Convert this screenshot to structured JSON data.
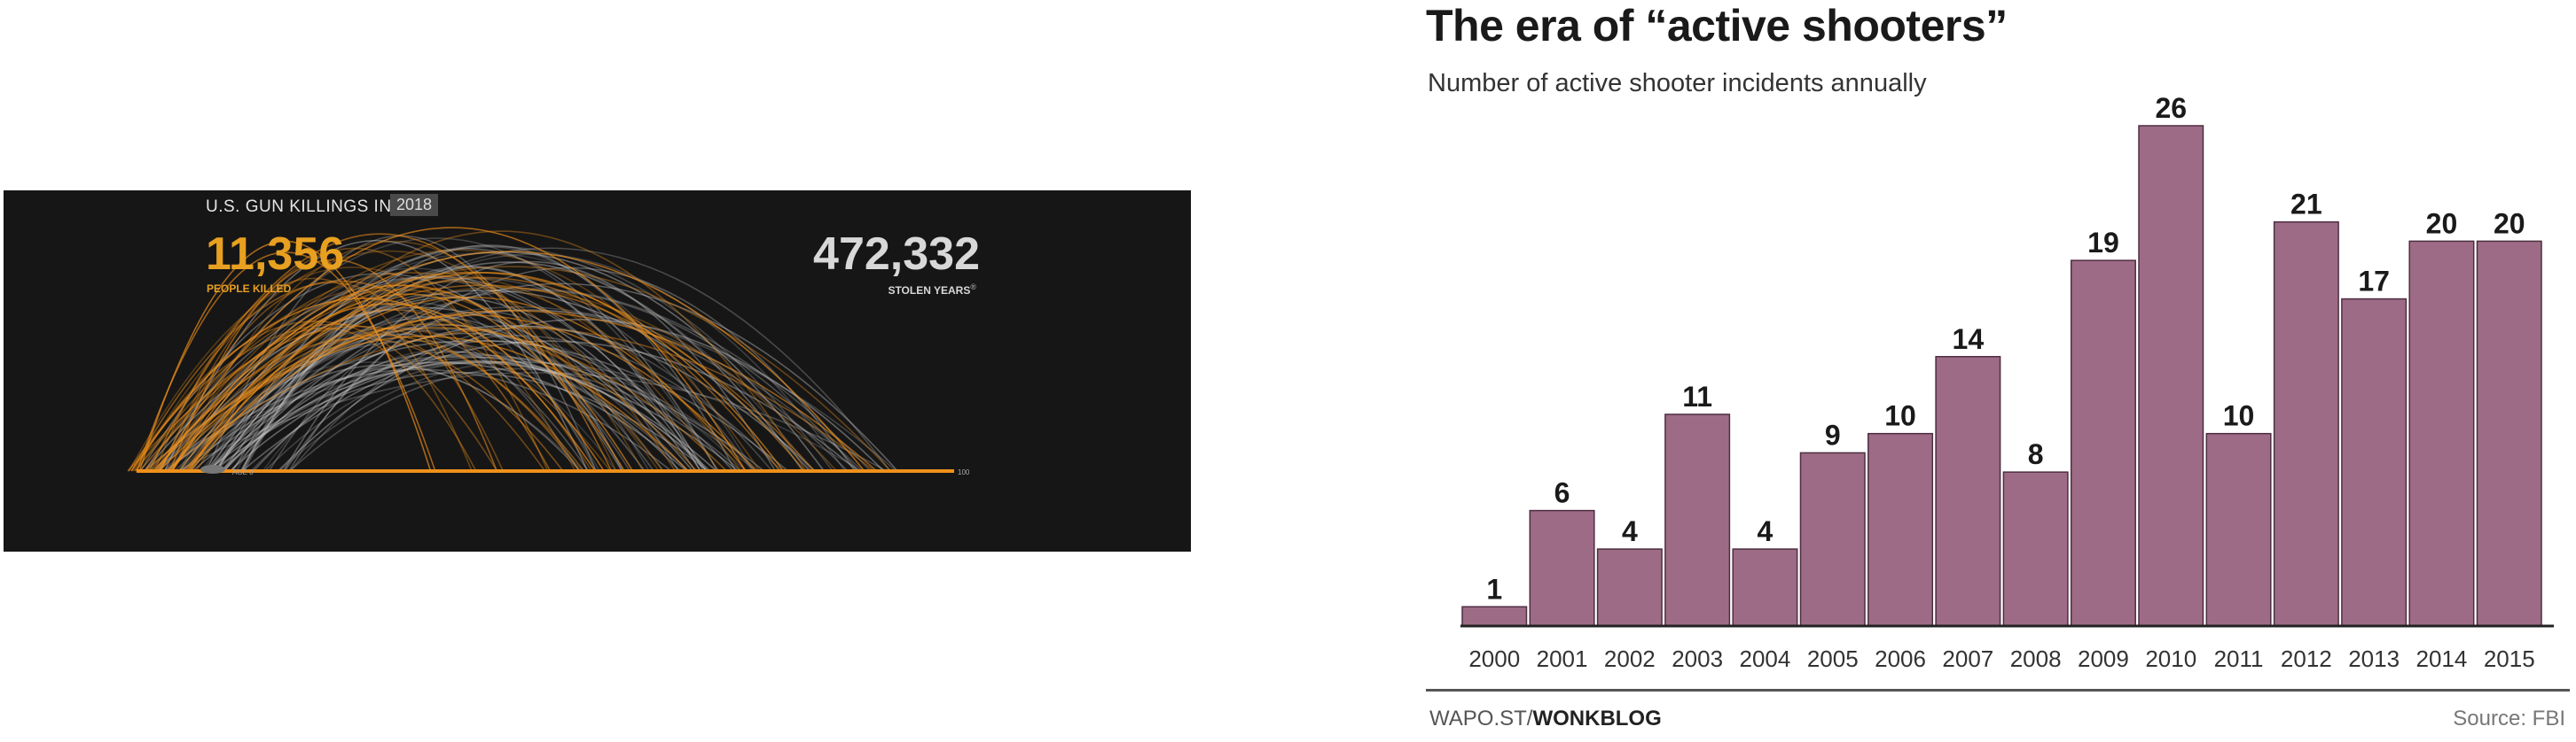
{
  "gun_panel": {
    "title": "U.S. GUN KILLINGS IN",
    "year": "2018",
    "people_killed_value": "11,356",
    "people_killed_label": "PEOPLE KILLED",
    "stolen_years_value": "472,332",
    "stolen_years_label": "STOLEN YEARS",
    "stolen_years_note_mark": "®",
    "axis_start_label": "AGE 0",
    "axis_end_label": "100",
    "colors": {
      "background": "#161616",
      "killed": "#f0901a",
      "stolen": "#cfcfcf"
    }
  },
  "chart_data": {
    "type": "bar",
    "title": "The era of “active shooters”",
    "subtitle": "Number of active shooter incidents annually",
    "categories": [
      "2000",
      "2001",
      "2002",
      "2003",
      "2004",
      "2005",
      "2006",
      "2007",
      "2008",
      "2009",
      "2010",
      "2011",
      "2012",
      "2013",
      "2014",
      "2015"
    ],
    "values": [
      1,
      6,
      4,
      11,
      4,
      9,
      10,
      14,
      8,
      19,
      26,
      10,
      21,
      17,
      20,
      20
    ],
    "xlabel": "",
    "ylabel": "",
    "ylim": [
      0,
      26
    ],
    "grid": false,
    "bar_color": "#9e6b86",
    "source_left_prefix": "WAPO.ST/",
    "source_left_bold": "WONKBLOG",
    "source_right": "Source: FBI"
  }
}
